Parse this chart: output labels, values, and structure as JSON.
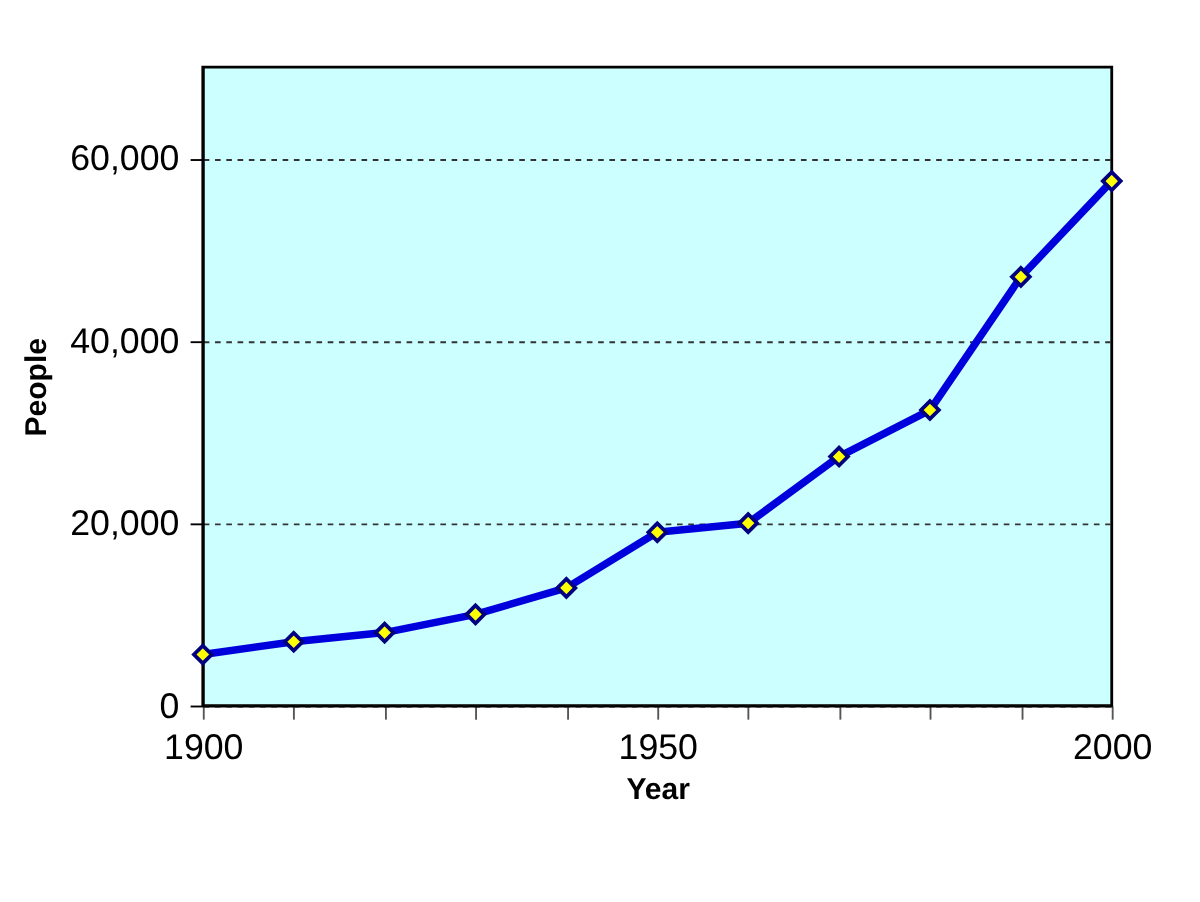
{
  "chart_data": {
    "type": "line",
    "xlabel": "Year",
    "ylabel": "People",
    "x": [
      1900,
      1910,
      1920,
      1930,
      1940,
      1950,
      1960,
      1970,
      1980,
      1990,
      2000
    ],
    "series": [
      {
        "color": "#0000dd",
        "values": [
          5600,
          7000,
          8000,
          10000,
          12900,
          19000,
          20000,
          27300,
          32400,
          47000,
          57500
        ]
      }
    ],
    "xlim": [
      1900,
      2000
    ],
    "xticks": [
      1900,
      {
        "value": 1910,
        "label": null
      },
      {
        "value": 1920,
        "label": null
      },
      {
        "value": 1930,
        "label": null
      },
      {
        "value": 1940,
        "label": null
      },
      1950,
      {
        "value": 1960,
        "label": null
      },
      {
        "value": 1970,
        "label": null
      },
      {
        "value": 1980,
        "label": null
      },
      {
        "value": 1990,
        "label": null
      },
      2000
    ],
    "ylim": [
      0,
      70000
    ],
    "yticks": [
      0,
      {
        "value": 20000,
        "label": "20,000"
      },
      {
        "value": 40000,
        "label": "40,000"
      },
      {
        "value": 60000,
        "label": "60,000"
      }
    ],
    "grid": "y",
    "marker": "diamond",
    "line_style": "solid",
    "legend": false
  }
}
